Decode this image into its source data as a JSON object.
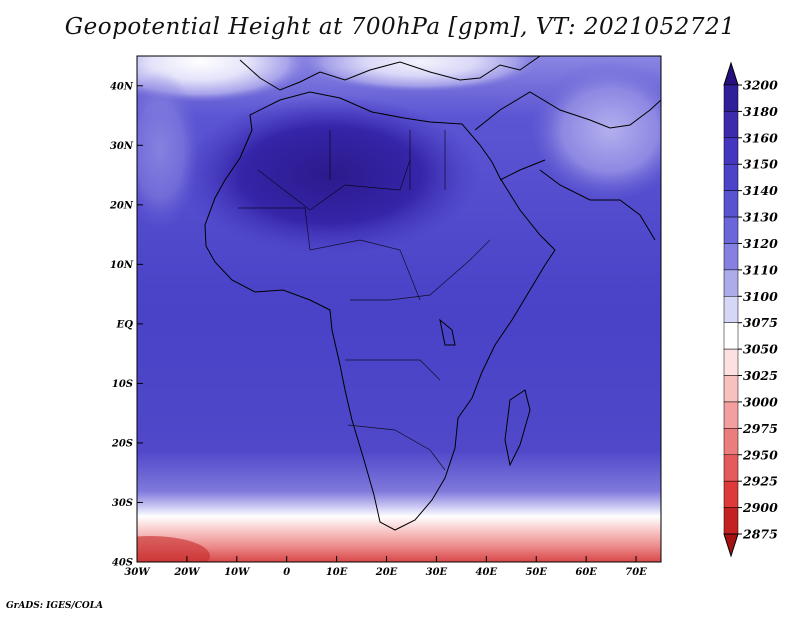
{
  "title": "Geopotential Height at 700hPa [gpm], VT: 2021052721",
  "credit": "GrADS: IGES/COLA",
  "map": {
    "lat_labels": [
      "40N",
      "30N",
      "20N",
      "10N",
      "EQ",
      "10S",
      "20S",
      "30S",
      "40S"
    ],
    "lat_values": [
      40,
      30,
      20,
      10,
      0,
      -10,
      -20,
      -30,
      -40
    ],
    "lon_labels": [
      "30W",
      "20W",
      "10W",
      "0",
      "10E",
      "20E",
      "30E",
      "40E",
      "50E",
      "60E",
      "70E"
    ],
    "lon_values": [
      -30,
      -20,
      -10,
      0,
      10,
      20,
      30,
      40,
      50,
      60,
      70
    ],
    "lon_range": [
      -30,
      75
    ],
    "lat_range": [
      -40,
      45
    ]
  },
  "colorbar": {
    "labels": [
      "3200",
      "3180",
      "3160",
      "3150",
      "3140",
      "3130",
      "3120",
      "3110",
      "3100",
      "3075",
      "3050",
      "3025",
      "3000",
      "2975",
      "2950",
      "2925",
      "2900",
      "2875"
    ],
    "colors": [
      "#27107e",
      "#2f1f99",
      "#3c2cad",
      "#4536c0",
      "#4d43c8",
      "#5a53d1",
      "#6b66da",
      "#8580e1",
      "#aeabeb",
      "#d6d6f7",
      "#ffffff",
      "#fde0e0",
      "#f9c0c0",
      "#f39f9f",
      "#ec7d7d",
      "#e55a5a",
      "#de3a3a",
      "#c42222",
      "#a51212"
    ]
  }
}
